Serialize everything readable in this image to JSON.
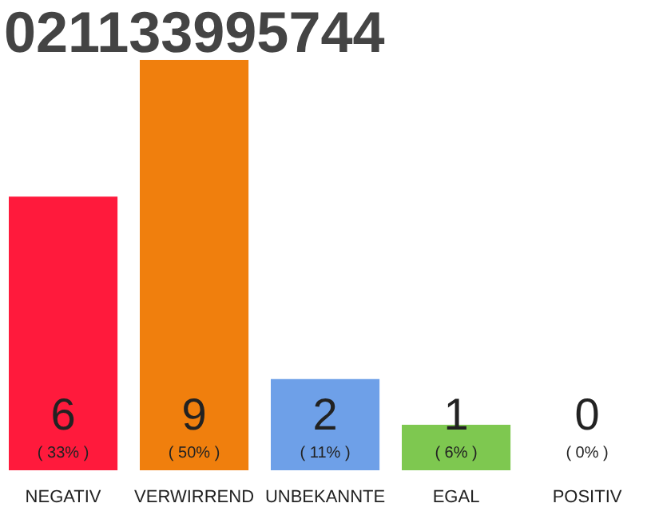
{
  "chart_data": {
    "type": "bar",
    "title": "021133995744",
    "categories": [
      "NEGATIV",
      "VERWIRREND",
      "UNBEKANNTE",
      "EGAL",
      "POSITIV"
    ],
    "values": [
      6,
      9,
      2,
      1,
      0
    ],
    "colors": [
      "#ff1a3c",
      "#f07f0d",
      "#6ea0e8",
      "#7ec850",
      "#eeeeee"
    ],
    "annotations": [
      "( 33% )",
      "( 50% )",
      "( 11% )",
      "( 6% )",
      "( 0% )"
    ],
    "data_labels": true,
    "grid": false
  }
}
